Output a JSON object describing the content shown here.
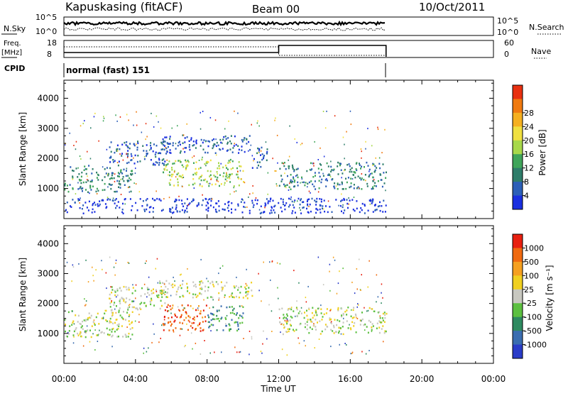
{
  "header": {
    "station": "Kapuskasing (fitACF)",
    "beam": "Beam 00",
    "date": "10/Oct/2011"
  },
  "control_panel": {
    "nsky_label": "N.Sky",
    "nsky_ticks": [
      "10^5",
      "10^0"
    ],
    "nsearch_label": "N.Search",
    "nsearch_ticks": [
      "10^5",
      "10^0"
    ],
    "freq_label_1": "Freq.",
    "freq_label_2": "[MHz]",
    "freq_ticks": [
      "18",
      "8"
    ],
    "nave_label": "Nave",
    "nave_ticks": [
      "60",
      "0"
    ],
    "cpid_label": "CPID",
    "cpid_value": "normal (fast) 151"
  },
  "chart_data": [
    {
      "type": "heatmap",
      "panel": "power",
      "xlabel": "Time UT",
      "ylabel": "Slant Range [km]",
      "xticks": [
        "00:00",
        "04:00",
        "08:00",
        "12:00",
        "16:00",
        "20:00",
        "00:00"
      ],
      "yticks": [
        "1000",
        "2000",
        "3000",
        "4000"
      ],
      "xlim_hours": [
        0,
        24
      ],
      "ylim_km": [
        0,
        4600
      ],
      "data_end_hour": 18,
      "colorbar_label": "Power [dB]",
      "colorbar_ticks": [
        "4",
        "8",
        "12",
        "16",
        "20",
        "24",
        "28"
      ],
      "colorbar_colors": [
        "#1a2fe0",
        "#2c5fb8",
        "#2e7d6a",
        "#3fa55a",
        "#a7d84a",
        "#f0e040",
        "#f5b020",
        "#f07a10",
        "#e83010"
      ],
      "echo_regions": [
        {
          "t0": 0.0,
          "t1": 3.8,
          "r0": 900,
          "r1": 1800,
          "level": 2
        },
        {
          "t0": 2.5,
          "t1": 5.8,
          "r0": 1800,
          "r1": 2600,
          "level": 1
        },
        {
          "t0": 5.3,
          "t1": 10.5,
          "r0": 2200,
          "r1": 2800,
          "level": 1
        },
        {
          "t0": 5.5,
          "t1": 10.0,
          "r0": 1100,
          "r1": 2000,
          "level": 4
        },
        {
          "t0": 10.5,
          "t1": 11.5,
          "r0": 1700,
          "r1": 2400,
          "level": 1
        },
        {
          "t0": 12.0,
          "t1": 18.0,
          "r0": 1000,
          "r1": 1900,
          "level": 2
        },
        {
          "t0": 0.0,
          "t1": 18.0,
          "r0": 200,
          "r1": 700,
          "level": 0
        }
      ]
    },
    {
      "type": "heatmap",
      "panel": "velocity",
      "xlabel": "Time UT",
      "ylabel": "Slant Range [km]",
      "xticks": [
        "00:00",
        "04:00",
        "08:00",
        "12:00",
        "16:00",
        "20:00",
        "00:00"
      ],
      "yticks": [
        "1000",
        "2000",
        "3000",
        "4000"
      ],
      "xlim_hours": [
        0,
        24
      ],
      "ylim_km": [
        0,
        4600
      ],
      "data_end_hour": 18,
      "colorbar_label": "Velocity [m s⁻¹]",
      "colorbar_ticks": [
        "1000",
        "500",
        "100",
        "25",
        "-25",
        "-100",
        "-500",
        "-1000"
      ],
      "colorbar_colors": [
        "#2a3cc8",
        "#3a6db0",
        "#2e8a60",
        "#5cc040",
        "#c8c8c0",
        "#f0d020",
        "#f5a020",
        "#f06a10",
        "#e82010"
      ],
      "echo_regions": [
        {
          "t0": 0.0,
          "t1": 3.8,
          "r0": 900,
          "r1": 1800,
          "level": 4
        },
        {
          "t0": 2.5,
          "t1": 5.8,
          "r0": 1800,
          "r1": 2600,
          "level": 4
        },
        {
          "t0": 5.3,
          "t1": 10.5,
          "r0": 2200,
          "r1": 2800,
          "level": 4
        },
        {
          "t0": 5.5,
          "t1": 8.0,
          "r0": 1100,
          "r1": 2000,
          "level": 7
        },
        {
          "t0": 8.0,
          "t1": 10.0,
          "r0": 1100,
          "r1": 2000,
          "level": 2
        },
        {
          "t0": 12.0,
          "t1": 18.0,
          "r0": 1000,
          "r1": 1900,
          "level": 4
        }
      ]
    }
  ]
}
